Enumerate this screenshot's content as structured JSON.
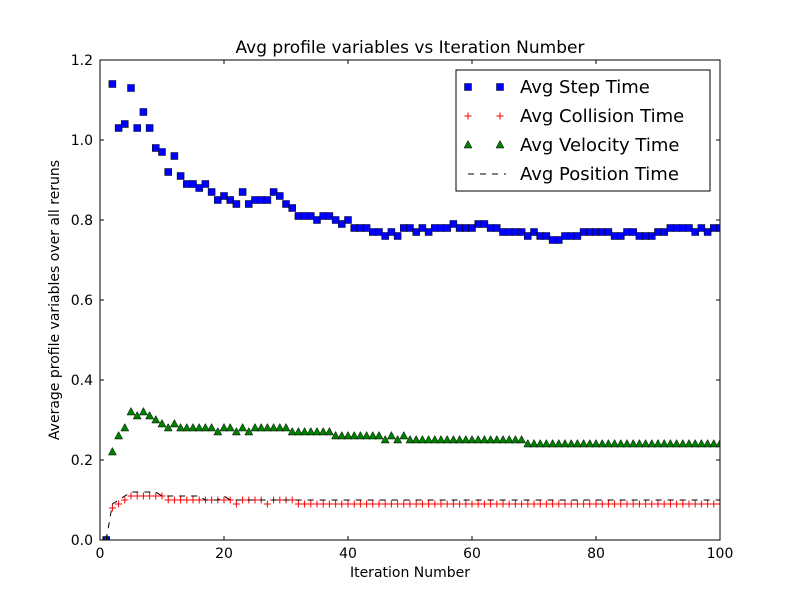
{
  "chart_data": {
    "type": "scatter",
    "title": "Avg profile variables vs Iteration Number",
    "xlabel": "Iteration Number",
    "ylabel": "Average profile variables over all reruns",
    "xlim": [
      0,
      100
    ],
    "ylim": [
      0.0,
      1.2
    ],
    "xticks": [
      0,
      20,
      40,
      60,
      80,
      100
    ],
    "yticks": [
      0.0,
      0.2,
      0.4,
      0.6,
      0.8,
      1.0,
      1.2
    ],
    "xtick_labels": [
      "0",
      "20",
      "40",
      "60",
      "80",
      "100"
    ],
    "ytick_labels": [
      "0.0",
      "0.2",
      "0.4",
      "0.6",
      "0.8",
      "1.0",
      "1.2"
    ],
    "grid": false,
    "legend_position": "top-right",
    "x": [
      1,
      2,
      3,
      4,
      5,
      6,
      7,
      8,
      9,
      10,
      11,
      12,
      13,
      14,
      15,
      16,
      17,
      18,
      19,
      20,
      21,
      22,
      23,
      24,
      25,
      26,
      27,
      28,
      29,
      30,
      31,
      32,
      33,
      34,
      35,
      36,
      37,
      38,
      39,
      40,
      41,
      42,
      43,
      44,
      45,
      46,
      47,
      48,
      49,
      50,
      51,
      52,
      53,
      54,
      55,
      56,
      57,
      58,
      59,
      60,
      61,
      62,
      63,
      64,
      65,
      66,
      67,
      68,
      69,
      70,
      71,
      72,
      73,
      74,
      75,
      76,
      77,
      78,
      79,
      80,
      81,
      82,
      83,
      84,
      85,
      86,
      87,
      88,
      89,
      90,
      91,
      92,
      93,
      94,
      95,
      96,
      97,
      98,
      99,
      100
    ],
    "series": [
      {
        "name": "Avg Step Time",
        "marker": "square",
        "color": "#0000ff",
        "values": [
          0.0,
          1.14,
          1.03,
          1.04,
          1.13,
          1.03,
          1.07,
          1.03,
          0.98,
          0.97,
          0.92,
          0.96,
          0.91,
          0.89,
          0.89,
          0.88,
          0.89,
          0.87,
          0.85,
          0.86,
          0.85,
          0.84,
          0.87,
          0.84,
          0.85,
          0.85,
          0.85,
          0.87,
          0.86,
          0.84,
          0.83,
          0.81,
          0.81,
          0.81,
          0.8,
          0.81,
          0.81,
          0.8,
          0.79,
          0.8,
          0.78,
          0.78,
          0.78,
          0.77,
          0.77,
          0.76,
          0.77,
          0.76,
          0.78,
          0.78,
          0.77,
          0.78,
          0.77,
          0.78,
          0.78,
          0.78,
          0.79,
          0.78,
          0.78,
          0.78,
          0.79,
          0.79,
          0.78,
          0.78,
          0.77,
          0.77,
          0.77,
          0.77,
          0.76,
          0.77,
          0.76,
          0.76,
          0.75,
          0.75,
          0.76,
          0.76,
          0.76,
          0.77,
          0.77,
          0.77,
          0.77,
          0.77,
          0.76,
          0.76,
          0.77,
          0.77,
          0.76,
          0.76,
          0.76,
          0.77,
          0.77,
          0.78,
          0.78,
          0.78,
          0.78,
          0.77,
          0.78,
          0.77,
          0.78,
          0.78
        ]
      },
      {
        "name": "Avg Collision Time",
        "marker": "plus",
        "color": "#ff0000",
        "values": [
          0.0,
          0.08,
          0.09,
          0.1,
          0.11,
          0.11,
          0.11,
          0.11,
          0.11,
          0.11,
          0.1,
          0.1,
          0.1,
          0.1,
          0.1,
          0.1,
          0.1,
          0.1,
          0.1,
          0.1,
          0.1,
          0.09,
          0.1,
          0.1,
          0.1,
          0.1,
          0.09,
          0.1,
          0.1,
          0.1,
          0.1,
          0.09,
          0.09,
          0.09,
          0.09,
          0.09,
          0.09,
          0.09,
          0.09,
          0.09,
          0.09,
          0.09,
          0.09,
          0.09,
          0.09,
          0.09,
          0.09,
          0.09,
          0.09,
          0.09,
          0.09,
          0.09,
          0.09,
          0.09,
          0.09,
          0.09,
          0.09,
          0.09,
          0.09,
          0.09,
          0.09,
          0.09,
          0.09,
          0.09,
          0.09,
          0.09,
          0.09,
          0.09,
          0.09,
          0.09,
          0.09,
          0.09,
          0.09,
          0.09,
          0.09,
          0.09,
          0.09,
          0.09,
          0.09,
          0.09,
          0.09,
          0.09,
          0.09,
          0.09,
          0.09,
          0.09,
          0.09,
          0.09,
          0.09,
          0.09,
          0.09,
          0.09,
          0.09,
          0.09,
          0.09,
          0.09,
          0.09,
          0.09,
          0.09,
          0.09
        ]
      },
      {
        "name": "Avg Velocity Time",
        "marker": "triangle",
        "color": "#007f00",
        "values": [
          0.0,
          0.22,
          0.26,
          0.28,
          0.32,
          0.31,
          0.32,
          0.31,
          0.3,
          0.29,
          0.28,
          0.29,
          0.28,
          0.28,
          0.28,
          0.28,
          0.28,
          0.28,
          0.27,
          0.28,
          0.28,
          0.27,
          0.28,
          0.27,
          0.28,
          0.28,
          0.28,
          0.28,
          0.28,
          0.28,
          0.27,
          0.27,
          0.27,
          0.27,
          0.27,
          0.27,
          0.27,
          0.26,
          0.26,
          0.26,
          0.26,
          0.26,
          0.26,
          0.26,
          0.26,
          0.25,
          0.26,
          0.25,
          0.26,
          0.25,
          0.25,
          0.25,
          0.25,
          0.25,
          0.25,
          0.25,
          0.25,
          0.25,
          0.25,
          0.25,
          0.25,
          0.25,
          0.25,
          0.25,
          0.25,
          0.25,
          0.25,
          0.25,
          0.24,
          0.24,
          0.24,
          0.24,
          0.24,
          0.24,
          0.24,
          0.24,
          0.24,
          0.24,
          0.24,
          0.24,
          0.24,
          0.24,
          0.24,
          0.24,
          0.24,
          0.24,
          0.24,
          0.24,
          0.24,
          0.24,
          0.24,
          0.24,
          0.24,
          0.24,
          0.24,
          0.24,
          0.24,
          0.24,
          0.24,
          0.24
        ]
      },
      {
        "name": "Avg Position Time",
        "marker": "dashed-line",
        "color": "#000000",
        "values": [
          0.0,
          0.09,
          0.1,
          0.11,
          0.12,
          0.12,
          0.12,
          0.12,
          0.12,
          0.11,
          0.11,
          0.11,
          0.11,
          0.11,
          0.11,
          0.11,
          0.1,
          0.1,
          0.1,
          0.11,
          0.1,
          0.1,
          0.1,
          0.1,
          0.1,
          0.1,
          0.1,
          0.1,
          0.1,
          0.1,
          0.1,
          0.1,
          0.1,
          0.1,
          0.1,
          0.1,
          0.1,
          0.1,
          0.1,
          0.1,
          0.1,
          0.1,
          0.1,
          0.1,
          0.1,
          0.1,
          0.1,
          0.1,
          0.1,
          0.1,
          0.1,
          0.1,
          0.1,
          0.1,
          0.1,
          0.1,
          0.1,
          0.1,
          0.1,
          0.1,
          0.1,
          0.1,
          0.1,
          0.1,
          0.1,
          0.1,
          0.1,
          0.1,
          0.1,
          0.1,
          0.1,
          0.1,
          0.1,
          0.1,
          0.1,
          0.1,
          0.1,
          0.1,
          0.1,
          0.1,
          0.1,
          0.1,
          0.1,
          0.1,
          0.1,
          0.1,
          0.1,
          0.1,
          0.1,
          0.1,
          0.1,
          0.1,
          0.1,
          0.1,
          0.1,
          0.1,
          0.1,
          0.1,
          0.1,
          0.1
        ]
      }
    ]
  }
}
